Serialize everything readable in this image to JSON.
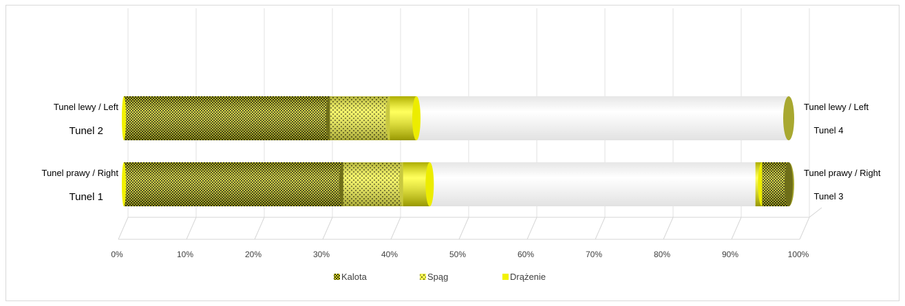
{
  "chart_data": {
    "type": "bar",
    "orientation": "horizontal",
    "stacked": true,
    "percent_stacked": true,
    "three_d": true,
    "grid": true,
    "legend_position": "bottom",
    "xlim": [
      0,
      100
    ],
    "x_ticks": [
      "0%",
      "10%",
      "20%",
      "30%",
      "40%",
      "50%",
      "60%",
      "70%",
      "80%",
      "90%",
      "100%"
    ],
    "series": [
      {
        "name": "Kalota",
        "pattern": "dense-check",
        "color": "#8a8a1a"
      },
      {
        "name": "Spąg",
        "pattern": "sparse-check",
        "color": "#e8e830"
      },
      {
        "name": "Drążenie",
        "pattern": "solid",
        "color": "#f2f200"
      }
    ],
    "bars": [
      {
        "left_label_1": "Tunel lewy /  Left",
        "left_label_2": "Tunel 2",
        "right_label_1": "Tunel lewy /  Left",
        "right_label_2": "Tunel 4",
        "segments": [
          {
            "series": "Kalota",
            "from": 0,
            "to": 31
          },
          {
            "series": "Spąg",
            "from": 31,
            "to": 40
          },
          {
            "series": "Drążenie",
            "from": 40,
            "to": 44
          }
        ]
      },
      {
        "left_label_1": "Tunel prawy / Right",
        "left_label_2": "Tunel 1",
        "right_label_1": "Tunel prawy / Right",
        "right_label_2": "Tunel 3",
        "segments": [
          {
            "series": "Kalota",
            "from": 0,
            "to": 33
          },
          {
            "series": "Spąg",
            "from": 33,
            "to": 42
          },
          {
            "series": "Drążenie",
            "from": 42,
            "to": 46
          },
          {
            "series": "Drążenie",
            "from": 95,
            "to": 96
          },
          {
            "series": "Kalota",
            "from": 96,
            "to": 100
          }
        ]
      }
    ]
  }
}
